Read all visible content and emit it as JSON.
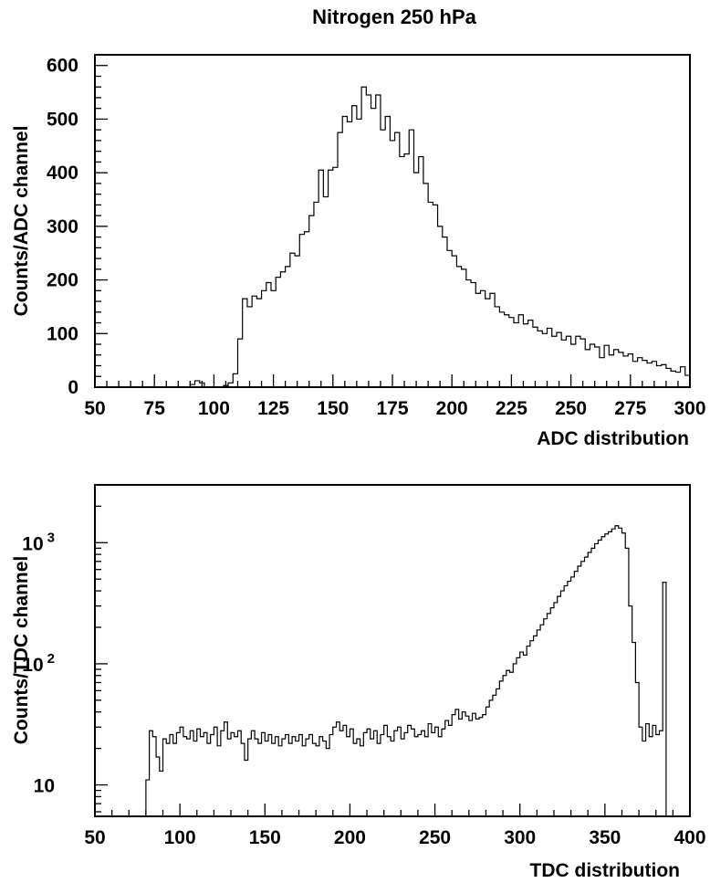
{
  "figure": {
    "title": "Nitrogen 250 hPa"
  },
  "chart_data": [
    {
      "type": "histogram",
      "xlabel": "ADC distribution",
      "ylabel": "Counts/ADC channel",
      "xlim": [
        50,
        300
      ],
      "ylim": [
        0,
        620
      ],
      "xticks": [
        50,
        75,
        100,
        125,
        150,
        175,
        200,
        225,
        250,
        275,
        300
      ],
      "yticks": [
        0,
        100,
        200,
        300,
        400,
        500,
        600
      ],
      "log_y": false,
      "bin_width": 2,
      "bins": [
        {
          "x": 50,
          "y": 0
        },
        {
          "x": 90,
          "y": 5
        },
        {
          "x": 92,
          "y": 12
        },
        {
          "x": 94,
          "y": 8
        },
        {
          "x": 96,
          "y": 0
        },
        {
          "x": 100,
          "y": 0
        },
        {
          "x": 104,
          "y": 3
        },
        {
          "x": 106,
          "y": 8
        },
        {
          "x": 108,
          "y": 25
        },
        {
          "x": 110,
          "y": 90
        },
        {
          "x": 112,
          "y": 165
        },
        {
          "x": 114,
          "y": 150
        },
        {
          "x": 116,
          "y": 170
        },
        {
          "x": 118,
          "y": 165
        },
        {
          "x": 120,
          "y": 180
        },
        {
          "x": 122,
          "y": 195
        },
        {
          "x": 124,
          "y": 180
        },
        {
          "x": 126,
          "y": 205
        },
        {
          "x": 128,
          "y": 215
        },
        {
          "x": 130,
          "y": 225
        },
        {
          "x": 132,
          "y": 250
        },
        {
          "x": 134,
          "y": 245
        },
        {
          "x": 136,
          "y": 285
        },
        {
          "x": 138,
          "y": 290
        },
        {
          "x": 140,
          "y": 320
        },
        {
          "x": 142,
          "y": 345
        },
        {
          "x": 144,
          "y": 405
        },
        {
          "x": 146,
          "y": 355
        },
        {
          "x": 148,
          "y": 405
        },
        {
          "x": 150,
          "y": 410
        },
        {
          "x": 152,
          "y": 475
        },
        {
          "x": 154,
          "y": 505
        },
        {
          "x": 156,
          "y": 495
        },
        {
          "x": 158,
          "y": 525
        },
        {
          "x": 160,
          "y": 500
        },
        {
          "x": 162,
          "y": 560
        },
        {
          "x": 164,
          "y": 545
        },
        {
          "x": 166,
          "y": 520
        },
        {
          "x": 168,
          "y": 545
        },
        {
          "x": 170,
          "y": 480
        },
        {
          "x": 172,
          "y": 505
        },
        {
          "x": 174,
          "y": 460
        },
        {
          "x": 176,
          "y": 475
        },
        {
          "x": 178,
          "y": 430
        },
        {
          "x": 180,
          "y": 435
        },
        {
          "x": 182,
          "y": 480
        },
        {
          "x": 184,
          "y": 400
        },
        {
          "x": 186,
          "y": 430
        },
        {
          "x": 188,
          "y": 380
        },
        {
          "x": 190,
          "y": 345
        },
        {
          "x": 192,
          "y": 340
        },
        {
          "x": 194,
          "y": 300
        },
        {
          "x": 196,
          "y": 280
        },
        {
          "x": 198,
          "y": 255
        },
        {
          "x": 200,
          "y": 245
        },
        {
          "x": 202,
          "y": 225
        },
        {
          "x": 204,
          "y": 220
        },
        {
          "x": 206,
          "y": 200
        },
        {
          "x": 208,
          "y": 195
        },
        {
          "x": 210,
          "y": 175
        },
        {
          "x": 212,
          "y": 180
        },
        {
          "x": 214,
          "y": 165
        },
        {
          "x": 216,
          "y": 175
        },
        {
          "x": 218,
          "y": 150
        },
        {
          "x": 220,
          "y": 140
        },
        {
          "x": 222,
          "y": 135
        },
        {
          "x": 224,
          "y": 130
        },
        {
          "x": 226,
          "y": 120
        },
        {
          "x": 228,
          "y": 135
        },
        {
          "x": 230,
          "y": 118
        },
        {
          "x": 232,
          "y": 125
        },
        {
          "x": 234,
          "y": 112
        },
        {
          "x": 236,
          "y": 105
        },
        {
          "x": 238,
          "y": 100
        },
        {
          "x": 240,
          "y": 110
        },
        {
          "x": 242,
          "y": 95
        },
        {
          "x": 244,
          "y": 102
        },
        {
          "x": 246,
          "y": 88
        },
        {
          "x": 248,
          "y": 95
        },
        {
          "x": 250,
          "y": 80
        },
        {
          "x": 252,
          "y": 95
        },
        {
          "x": 254,
          "y": 90
        },
        {
          "x": 256,
          "y": 70
        },
        {
          "x": 258,
          "y": 80
        },
        {
          "x": 260,
          "y": 75
        },
        {
          "x": 262,
          "y": 55
        },
        {
          "x": 264,
          "y": 78
        },
        {
          "x": 266,
          "y": 60
        },
        {
          "x": 268,
          "y": 70
        },
        {
          "x": 270,
          "y": 65
        },
        {
          "x": 272,
          "y": 58
        },
        {
          "x": 274,
          "y": 62
        },
        {
          "x": 276,
          "y": 48
        },
        {
          "x": 278,
          "y": 55
        },
        {
          "x": 280,
          "y": 50
        },
        {
          "x": 282,
          "y": 45
        },
        {
          "x": 284,
          "y": 48
        },
        {
          "x": 286,
          "y": 40
        },
        {
          "x": 288,
          "y": 42
        },
        {
          "x": 290,
          "y": 35
        },
        {
          "x": 292,
          "y": 30
        },
        {
          "x": 294,
          "y": 28
        },
        {
          "x": 296,
          "y": 38
        },
        {
          "x": 298,
          "y": 22
        }
      ],
      "grid": false
    },
    {
      "type": "histogram",
      "xlabel": "TDC distribution",
      "ylabel": "Counts/TDC channel",
      "xlim": [
        50,
        400
      ],
      "ylim": [
        5.5,
        3000
      ],
      "xticks": [
        50,
        100,
        150,
        200,
        250,
        300,
        350,
        400
      ],
      "ytick_labels": [
        {
          "value": 10,
          "base": "10",
          "exp": ""
        },
        {
          "value": 100,
          "base": "10",
          "exp": "2"
        },
        {
          "value": 1000,
          "base": "10",
          "exp": "3"
        }
      ],
      "log_y": true,
      "bin_width": 2,
      "bins": [
        {
          "x": 78,
          "y": 5.5
        },
        {
          "x": 80,
          "y": 11
        },
        {
          "x": 82,
          "y": 28
        },
        {
          "x": 84,
          "y": 25
        },
        {
          "x": 86,
          "y": 17
        },
        {
          "x": 88,
          "y": 13
        },
        {
          "x": 90,
          "y": 24
        },
        {
          "x": 92,
          "y": 22
        },
        {
          "x": 94,
          "y": 26
        },
        {
          "x": 96,
          "y": 22
        },
        {
          "x": 98,
          "y": 27
        },
        {
          "x": 100,
          "y": 30
        },
        {
          "x": 102,
          "y": 25
        },
        {
          "x": 104,
          "y": 24
        },
        {
          "x": 106,
          "y": 28
        },
        {
          "x": 108,
          "y": 23
        },
        {
          "x": 110,
          "y": 29
        },
        {
          "x": 112,
          "y": 25
        },
        {
          "x": 114,
          "y": 27
        },
        {
          "x": 116,
          "y": 22
        },
        {
          "x": 118,
          "y": 26
        },
        {
          "x": 120,
          "y": 30
        },
        {
          "x": 122,
          "y": 21
        },
        {
          "x": 124,
          "y": 28
        },
        {
          "x": 126,
          "y": 33
        },
        {
          "x": 128,
          "y": 24
        },
        {
          "x": 130,
          "y": 27
        },
        {
          "x": 132,
          "y": 25
        },
        {
          "x": 134,
          "y": 28
        },
        {
          "x": 136,
          "y": 22
        },
        {
          "x": 138,
          "y": 16
        },
        {
          "x": 140,
          "y": 24
        },
        {
          "x": 142,
          "y": 28
        },
        {
          "x": 144,
          "y": 24
        },
        {
          "x": 146,
          "y": 22
        },
        {
          "x": 148,
          "y": 27
        },
        {
          "x": 150,
          "y": 23
        },
        {
          "x": 152,
          "y": 26
        },
        {
          "x": 154,
          "y": 22
        },
        {
          "x": 156,
          "y": 25
        },
        {
          "x": 158,
          "y": 21
        },
        {
          "x": 160,
          "y": 24
        },
        {
          "x": 162,
          "y": 26
        },
        {
          "x": 164,
          "y": 22
        },
        {
          "x": 166,
          "y": 25
        },
        {
          "x": 168,
          "y": 23
        },
        {
          "x": 170,
          "y": 26
        },
        {
          "x": 172,
          "y": 21
        },
        {
          "x": 174,
          "y": 24
        },
        {
          "x": 176,
          "y": 26
        },
        {
          "x": 178,
          "y": 22
        },
        {
          "x": 180,
          "y": 21
        },
        {
          "x": 182,
          "y": 25
        },
        {
          "x": 184,
          "y": 23
        },
        {
          "x": 186,
          "y": 20
        },
        {
          "x": 188,
          "y": 26
        },
        {
          "x": 190,
          "y": 30
        },
        {
          "x": 192,
          "y": 33
        },
        {
          "x": 194,
          "y": 28
        },
        {
          "x": 196,
          "y": 31
        },
        {
          "x": 198,
          "y": 25
        },
        {
          "x": 200,
          "y": 29
        },
        {
          "x": 202,
          "y": 22
        },
        {
          "x": 204,
          "y": 24
        },
        {
          "x": 206,
          "y": 21
        },
        {
          "x": 208,
          "y": 27
        },
        {
          "x": 210,
          "y": 29
        },
        {
          "x": 212,
          "y": 24
        },
        {
          "x": 214,
          "y": 28
        },
        {
          "x": 216,
          "y": 22
        },
        {
          "x": 218,
          "y": 26
        },
        {
          "x": 220,
          "y": 31
        },
        {
          "x": 222,
          "y": 25
        },
        {
          "x": 224,
          "y": 23
        },
        {
          "x": 226,
          "y": 28
        },
        {
          "x": 228,
          "y": 30
        },
        {
          "x": 230,
          "y": 24
        },
        {
          "x": 232,
          "y": 27
        },
        {
          "x": 234,
          "y": 31
        },
        {
          "x": 236,
          "y": 29
        },
        {
          "x": 238,
          "y": 25
        },
        {
          "x": 240,
          "y": 26
        },
        {
          "x": 242,
          "y": 28
        },
        {
          "x": 244,
          "y": 25
        },
        {
          "x": 246,
          "y": 32
        },
        {
          "x": 248,
          "y": 27
        },
        {
          "x": 250,
          "y": 30
        },
        {
          "x": 252,
          "y": 25
        },
        {
          "x": 254,
          "y": 29
        },
        {
          "x": 256,
          "y": 34
        },
        {
          "x": 258,
          "y": 31
        },
        {
          "x": 260,
          "y": 38
        },
        {
          "x": 262,
          "y": 42
        },
        {
          "x": 264,
          "y": 35
        },
        {
          "x": 266,
          "y": 40
        },
        {
          "x": 268,
          "y": 37
        },
        {
          "x": 270,
          "y": 34
        },
        {
          "x": 272,
          "y": 39
        },
        {
          "x": 274,
          "y": 35
        },
        {
          "x": 276,
          "y": 36
        },
        {
          "x": 278,
          "y": 38
        },
        {
          "x": 280,
          "y": 44
        },
        {
          "x": 282,
          "y": 50
        },
        {
          "x": 284,
          "y": 55
        },
        {
          "x": 286,
          "y": 62
        },
        {
          "x": 288,
          "y": 72
        },
        {
          "x": 290,
          "y": 80
        },
        {
          "x": 292,
          "y": 88
        },
        {
          "x": 294,
          "y": 85
        },
        {
          "x": 296,
          "y": 100
        },
        {
          "x": 298,
          "y": 112
        },
        {
          "x": 300,
          "y": 125
        },
        {
          "x": 302,
          "y": 118
        },
        {
          "x": 304,
          "y": 140
        },
        {
          "x": 306,
          "y": 155
        },
        {
          "x": 308,
          "y": 170
        },
        {
          "x": 310,
          "y": 190
        },
        {
          "x": 312,
          "y": 210
        },
        {
          "x": 314,
          "y": 235
        },
        {
          "x": 316,
          "y": 260
        },
        {
          "x": 318,
          "y": 290
        },
        {
          "x": 320,
          "y": 320
        },
        {
          "x": 322,
          "y": 360
        },
        {
          "x": 324,
          "y": 400
        },
        {
          "x": 326,
          "y": 440
        },
        {
          "x": 328,
          "y": 480
        },
        {
          "x": 330,
          "y": 520
        },
        {
          "x": 332,
          "y": 580
        },
        {
          "x": 334,
          "y": 640
        },
        {
          "x": 336,
          "y": 700
        },
        {
          "x": 338,
          "y": 760
        },
        {
          "x": 340,
          "y": 830
        },
        {
          "x": 342,
          "y": 900
        },
        {
          "x": 344,
          "y": 980
        },
        {
          "x": 346,
          "y": 1050
        },
        {
          "x": 348,
          "y": 1120
        },
        {
          "x": 350,
          "y": 1180
        },
        {
          "x": 352,
          "y": 1230
        },
        {
          "x": 354,
          "y": 1300
        },
        {
          "x": 356,
          "y": 1380
        },
        {
          "x": 358,
          "y": 1320
        },
        {
          "x": 360,
          "y": 1200
        },
        {
          "x": 362,
          "y": 900
        },
        {
          "x": 364,
          "y": 300
        },
        {
          "x": 366,
          "y": 150
        },
        {
          "x": 368,
          "y": 70
        },
        {
          "x": 370,
          "y": 30
        },
        {
          "x": 372,
          "y": 23
        },
        {
          "x": 374,
          "y": 32
        },
        {
          "x": 376,
          "y": 25
        },
        {
          "x": 378,
          "y": 31
        },
        {
          "x": 380,
          "y": 26
        },
        {
          "x": 382,
          "y": 28
        },
        {
          "x": 384,
          "y": 470
        }
      ],
      "grid": false
    }
  ]
}
